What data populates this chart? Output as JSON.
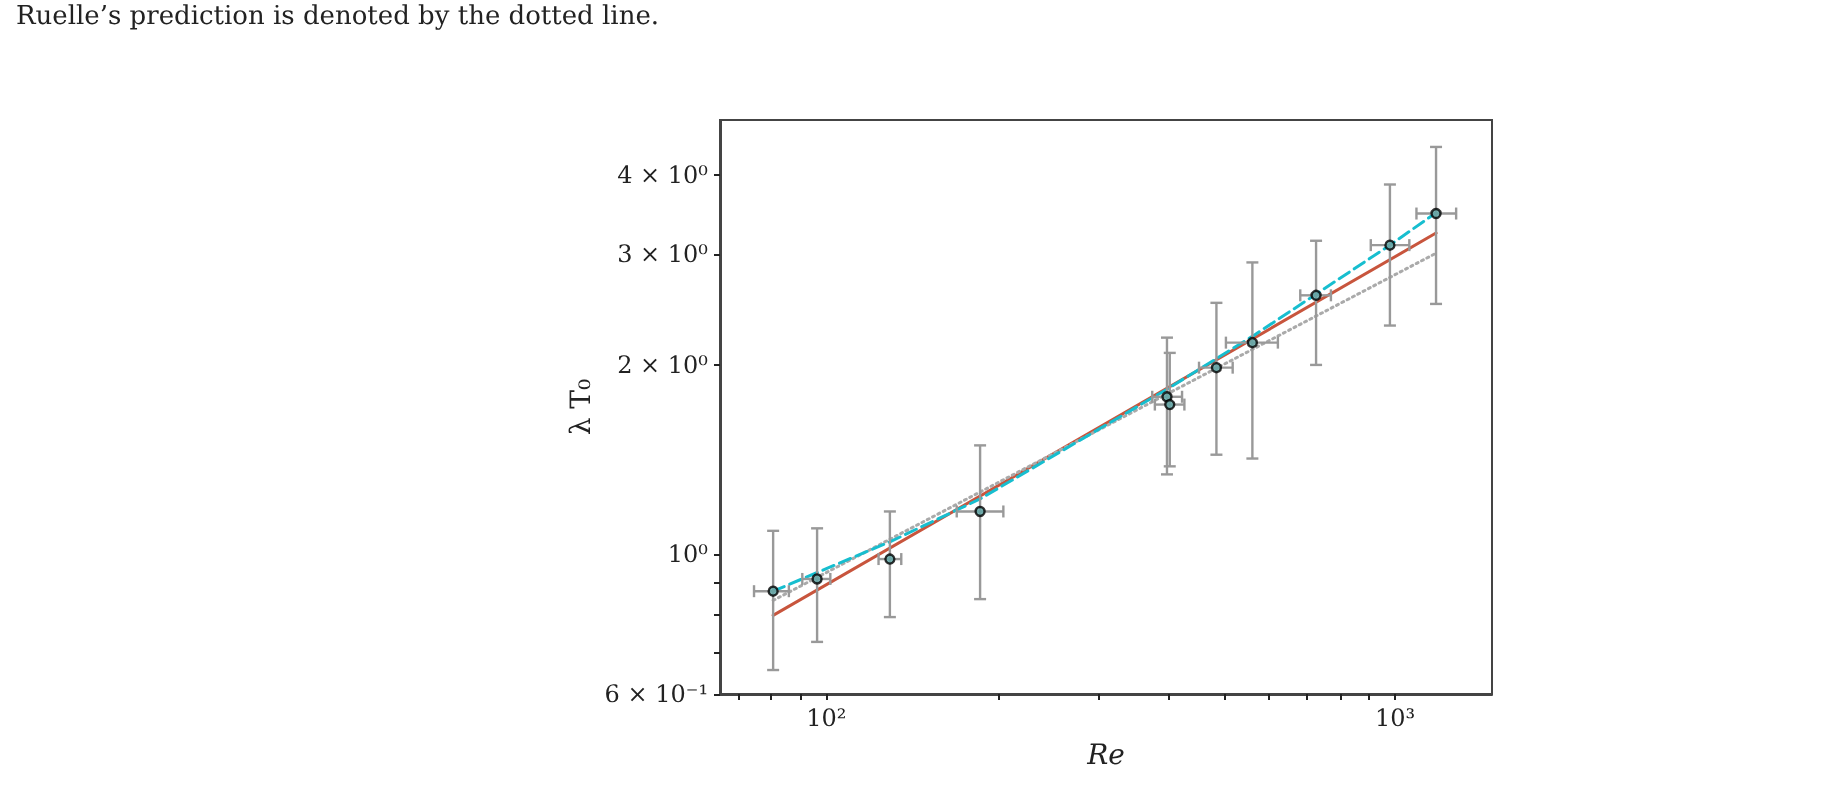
{
  "chart_data": {
    "type": "scatter",
    "xlabel": "Re",
    "ylabel": "λ T₀",
    "annotations": [
      "Ruelle’s prediction is denoted by the dotted line."
    ],
    "log": "xy",
    "grid": false,
    "xlim": [
      65,
      1480
    ],
    "ylim": [
      0.6,
      4.9
    ],
    "xticks": [
      {
        "value": 70,
        "label": null
      },
      {
        "value": 80,
        "label": null
      },
      {
        "value": 90,
        "label": null
      },
      {
        "value": 100,
        "label": "10²"
      },
      {
        "value": 200,
        "label": null
      },
      {
        "value": 300,
        "label": null
      },
      {
        "value": 400,
        "label": null
      },
      {
        "value": 500,
        "label": null
      },
      {
        "value": 600,
        "label": null
      },
      {
        "value": 700,
        "label": null
      },
      {
        "value": 800,
        "label": null
      },
      {
        "value": 900,
        "label": null
      },
      {
        "value": 1000,
        "label": "10³"
      }
    ],
    "yticks": [
      {
        "value": 0.6,
        "label": "6 × 10⁻¹"
      },
      {
        "value": 0.7,
        "label": null
      },
      {
        "value": 0.8,
        "label": null
      },
      {
        "value": 0.9,
        "label": null
      },
      {
        "value": 1,
        "label": "10⁰"
      },
      {
        "value": 2,
        "label": "2 × 10⁰"
      },
      {
        "value": 3,
        "label": "3 × 10⁰"
      },
      {
        "value": 4,
        "label": "4 × 10⁰"
      }
    ],
    "series": [
      {
        "type": "line",
        "color": "#c8553d",
        "line_style": "solid",
        "marker": "none",
        "x": [
          80.6,
          1180
        ],
        "values": [
          0.8,
          3.24
        ]
      },
      {
        "type": "line",
        "color": "#aaaaaa",
        "line_style": "dotted",
        "marker": "none",
        "x": [
          80.6,
          1180
        ],
        "values": [
          0.845,
          3.01
        ]
      },
      {
        "type": "line",
        "color": "#17becf",
        "line_style": "dashed",
        "marker": "none",
        "x": [
          80.6,
          129.3,
          186.3,
          397,
          561,
          979,
          1180
        ],
        "values": [
          0.874,
          1.047,
          1.225,
          1.83,
          2.22,
          3.1,
          3.49
        ]
      },
      {
        "color": "#000000",
        "marker": "circle",
        "x": [
          80.6,
          96.3,
          129.3,
          186.3,
          397,
          401.5,
          485,
          561,
          726,
          979,
          1180
        ],
        "values": [
          0.874,
          0.914,
          0.983,
          1.17,
          1.78,
          1.73,
          1.98,
          2.17,
          2.58,
          3.1,
          3.48
        ],
        "errors": [
          [
            0.655,
            1.09
          ],
          [
            0.726,
            1.1
          ],
          [
            0.795,
            1.17
          ],
          [
            0.849,
            1.49
          ],
          [
            1.34,
            2.21
          ],
          [
            1.38,
            2.09
          ],
          [
            1.44,
            2.51
          ],
          [
            1.42,
            2.91
          ],
          [
            2.0,
            3.15
          ],
          [
            2.31,
            3.87
          ],
          [
            2.5,
            4.44
          ]
        ],
        "xerrors": [
          [
            74.6,
            85.9
          ],
          [
            90.7,
            101.6
          ],
          [
            123.5,
            135.4
          ],
          [
            169.5,
            204.7
          ],
          [
            374,
            422
          ],
          [
            378,
            426
          ],
          [
            452,
            518
          ],
          [
            504,
            622
          ],
          [
            681,
            771
          ],
          [
            906,
            1059
          ],
          [
            1090,
            1280
          ]
        ]
      }
    ]
  }
}
